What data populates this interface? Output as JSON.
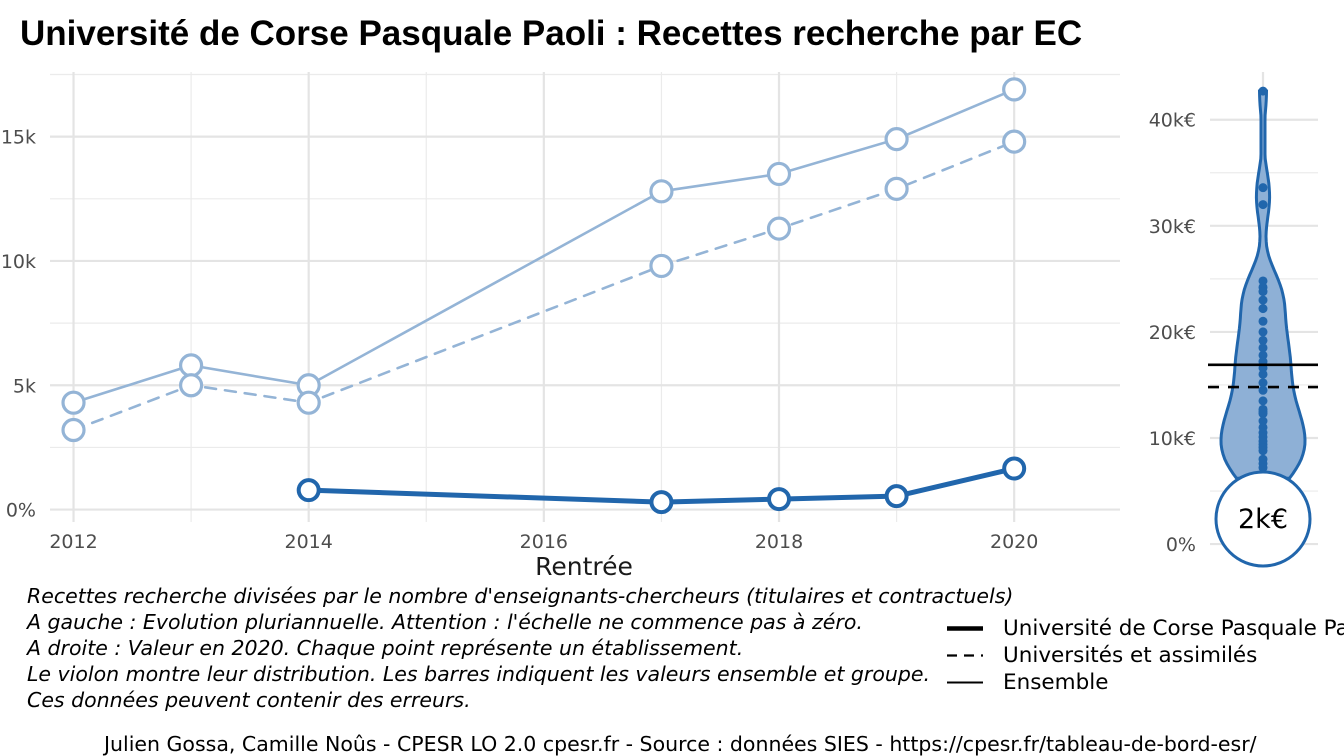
{
  "title": "Université de Corse Pasquale Paoli  :  Recettes recherche par EC",
  "chart_data": [
    {
      "type": "line",
      "xlabel": "Rentrée",
      "ylabel": "",
      "x_ticks": [
        "2012",
        "2014",
        "2016",
        "2018",
        "2020"
      ],
      "y_ticks": [
        "0%",
        "5k",
        "10k",
        "15k"
      ],
      "xlim": [
        2011.8,
        2020.9
      ],
      "ylim": [
        -500,
        17600
      ],
      "grid": true,
      "series": [
        {
          "name": "Université de Corse Pasquale Paoli",
          "style": "solid-thick",
          "color": "#2166ac",
          "x": [
            2014,
            2017,
            2018,
            2019,
            2020
          ],
          "y": [
            780,
            300,
            420,
            540,
            1650
          ]
        },
        {
          "name": "Ensemble",
          "style": "solid",
          "color": "#94b4d6",
          "x": [
            2012,
            2013,
            2014,
            2017,
            2018,
            2019,
            2020
          ],
          "y": [
            4300,
            5800,
            5000,
            12800,
            13500,
            14900,
            16900
          ]
        },
        {
          "name": "Universités et assimilés",
          "style": "dashed",
          "color": "#94b4d6",
          "x": [
            2012,
            2013,
            2014,
            2017,
            2018,
            2019,
            2020
          ],
          "y": [
            3200,
            5000,
            4300,
            9800,
            11300,
            12900,
            14800
          ]
        }
      ]
    },
    {
      "type": "violin",
      "y_ticks": [
        "0%",
        "10k€",
        "20k€",
        "30k€",
        "40k€"
      ],
      "ylim": [
        -1500,
        44500
      ],
      "grid": true,
      "points": [
        42700,
        33600,
        32000,
        24800,
        24200,
        23800,
        23000,
        22200,
        21000,
        20000,
        19200,
        18500,
        17800,
        17200,
        16600,
        16000,
        15200,
        14500,
        13500,
        12700,
        12500,
        12300,
        11600,
        11000,
        10500,
        10100,
        9700,
        9400,
        9100,
        8800,
        8000,
        7600,
        7200,
        6600,
        6400,
        6200
      ],
      "value_label": "2k€",
      "ensemble_value": 16900,
      "group_value": 14800,
      "color": "#2166ac"
    }
  ],
  "caption": [
    "Recettes recherche divisées par le nombre d'enseignants-chercheurs (titulaires et contractuels)",
    "A gauche : Evolution pluriannuelle. Attention : l'échelle ne commence pas à zéro.",
    "A droite : Valeur en 2020. Chaque point représente un établissement.",
    "Le violon montre leur distribution. Les barres indiquent les valeurs ensemble et groupe.",
    "Ces données peuvent contenir des erreurs."
  ],
  "legend": [
    {
      "label": "Université de Corse Pasquale Paoli",
      "style": "thick"
    },
    {
      "label": "Universités et assimilés",
      "style": "dashed"
    },
    {
      "label": "Ensemble",
      "style": "thin"
    }
  ],
  "footer": "Julien Gossa, Camille Noûs - CPESR LO 2.0 cpesr.fr - Source : données SIES - https://cpesr.fr/tableau-de-bord-esr/"
}
